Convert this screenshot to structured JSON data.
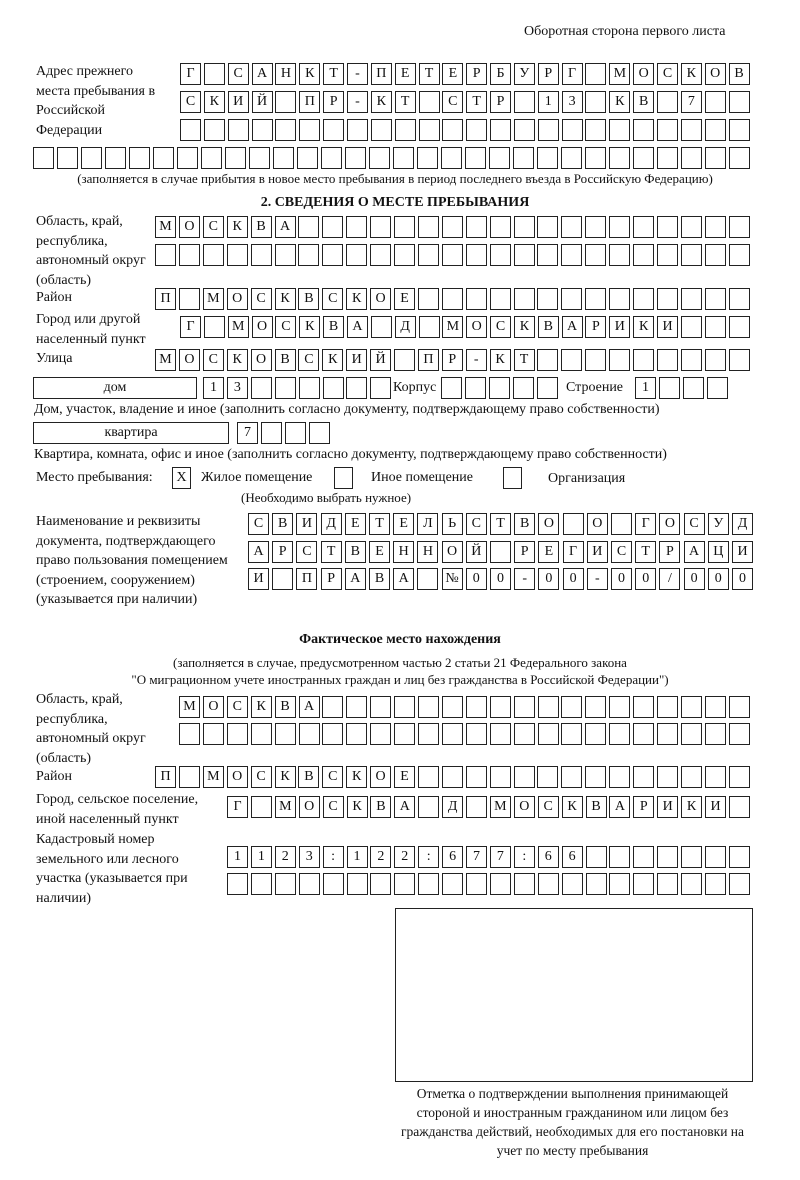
{
  "header": "Оборотная сторона первого листа",
  "prev_address": {
    "label": "Адрес прежнего места пребывания в Российской Федерации",
    "rows": [
      [
        "Г",
        "",
        "С",
        "А",
        "Н",
        "К",
        "Т",
        "-",
        "П",
        "Е",
        "Т",
        "Е",
        "Р",
        "Б",
        "У",
        "Р",
        "Г",
        "",
        "М",
        "О",
        "С",
        "К",
        "О",
        "В"
      ],
      [
        "С",
        "К",
        "И",
        "Й",
        "",
        "П",
        "Р",
        "-",
        "К",
        "Т",
        "",
        "С",
        "Т",
        "Р",
        "",
        "1",
        "3",
        "",
        "К",
        "В",
        "",
        "7",
        "",
        ""
      ],
      [
        "",
        "",
        "",
        "",
        "",
        "",
        "",
        "",
        "",
        "",
        "",
        "",
        "",
        "",
        "",
        "",
        "",
        "",
        "",
        "",
        "",
        "",
        "",
        ""
      ],
      [
        "",
        "",
        "",
        "",
        "",
        "",
        "",
        "",
        "",
        "",
        "",
        "",
        "",
        "",
        "",
        "",
        "",
        "",
        "",
        "",
        "",
        "",
        "",
        "",
        "",
        "",
        "",
        "",
        "",
        ""
      ]
    ],
    "note": "(заполняется в случае прибытия в новое место пребывания в период последнего въезда в Российскую Федерацию)"
  },
  "section2": {
    "title": "2. СВЕДЕНИЯ О МЕСТЕ ПРЕБЫВАНИЯ",
    "region_label": "Область, край, республика, автономный округ (область)",
    "region_rows": [
      [
        "М",
        "О",
        "С",
        "К",
        "В",
        "А",
        "",
        "",
        "",
        "",
        "",
        "",
        "",
        "",
        "",
        "",
        "",
        "",
        "",
        "",
        "",
        "",
        "",
        "",
        ""
      ],
      [
        "",
        "",
        "",
        "",
        "",
        "",
        "",
        "",
        "",
        "",
        "",
        "",
        "",
        "",
        "",
        "",
        "",
        "",
        "",
        "",
        "",
        "",
        "",
        "",
        ""
      ]
    ],
    "district_label": "Район",
    "district": [
      "П",
      "",
      "М",
      "О",
      "С",
      "К",
      "В",
      "С",
      "К",
      "О",
      "Е",
      "",
      "",
      "",
      "",
      "",
      "",
      "",
      "",
      "",
      "",
      "",
      "",
      "",
      ""
    ],
    "city_label": "Город или другой населенный пункт",
    "city": [
      "Г",
      "",
      "М",
      "О",
      "С",
      "К",
      "В",
      "А",
      "",
      "Д",
      "",
      "М",
      "О",
      "С",
      "К",
      "В",
      "А",
      "Р",
      "И",
      "К",
      "И",
      "",
      "",
      ""
    ],
    "street_label": "Улица",
    "street": [
      "М",
      "О",
      "С",
      "К",
      "О",
      "В",
      "С",
      "К",
      "И",
      "Й",
      "",
      "П",
      "Р",
      "-",
      "К",
      "Т",
      "",
      "",
      "",
      "",
      "",
      "",
      "",
      "",
      ""
    ],
    "house_type": "дом",
    "house": [
      "1",
      "3",
      "",
      "",
      "",
      "",
      "",
      ""
    ],
    "korpus_label": "Корпус",
    "korpus": [
      "",
      "",
      "",
      "",
      ""
    ],
    "building_label": "Строение",
    "building": [
      "1",
      "",
      "",
      ""
    ],
    "house_note": "Дом, участок, владение и иное (заполнить согласно документу, подтверждающему право собственности)",
    "flat_type": "квартира",
    "flat": [
      "7",
      "",
      "",
      ""
    ],
    "flat_note": "Квартира, комната, офис и иное (заполнить согласно документу, подтверждающему право собственности)",
    "place_label": "Место пребывания:",
    "place_options": [
      {
        "label": "Жилое помещение",
        "mark": "X"
      },
      {
        "label": "Иное помещение",
        "mark": ""
      },
      {
        "label": "Организация",
        "mark": ""
      }
    ],
    "place_note": "(Необходимо выбрать нужное)",
    "doc_label": "Наименование и реквизиты документа, подтверждающего право пользования помещением (строением, сооружением) (указывается при наличии)",
    "doc_rows": [
      [
        "С",
        "В",
        "И",
        "Д",
        "Е",
        "Т",
        "Е",
        "Л",
        "Ь",
        "С",
        "Т",
        "В",
        "О",
        "",
        "О",
        "",
        "Г",
        "О",
        "С",
        "У",
        "Д"
      ],
      [
        "А",
        "Р",
        "С",
        "Т",
        "В",
        "Е",
        "Н",
        "Н",
        "О",
        "Й",
        "",
        "Р",
        "Е",
        "Г",
        "И",
        "С",
        "Т",
        "Р",
        "А",
        "Ц",
        "И"
      ],
      [
        "И",
        "",
        "П",
        "Р",
        "А",
        "В",
        "А",
        "",
        "№",
        "0",
        "0",
        "-",
        "0",
        "0",
        "-",
        "0",
        "0",
        "/",
        "0",
        "0",
        "0"
      ]
    ]
  },
  "actual": {
    "title": "Фактическое место нахождения",
    "note1": "(заполняется в случае, предусмотренном частью 2 статьи 21 Федерального закона",
    "note2": "\"О миграционном учете иностранных граждан и лиц без гражданства в Российской Федерации\")",
    "region_label": "Область, край, республика, автономный округ (область)",
    "region_rows": [
      [
        "М",
        "О",
        "С",
        "К",
        "В",
        "А",
        "",
        "",
        "",
        "",
        "",
        "",
        "",
        "",
        "",
        "",
        "",
        "",
        "",
        "",
        "",
        "",
        "",
        ""
      ],
      [
        "",
        "",
        "",
        "",
        "",
        "",
        "",
        "",
        "",
        "",
        "",
        "",
        "",
        "",
        "",
        "",
        "",
        "",
        "",
        "",
        "",
        "",
        "",
        ""
      ]
    ],
    "district_label": "Район",
    "district": [
      "П",
      "",
      "М",
      "О",
      "С",
      "К",
      "В",
      "С",
      "К",
      "О",
      "Е",
      "",
      "",
      "",
      "",
      "",
      "",
      "",
      "",
      "",
      "",
      "",
      "",
      "",
      ""
    ],
    "city_label": "Город, сельское поселение, иной населенный пункт",
    "city": [
      "Г",
      "",
      "М",
      "О",
      "С",
      "К",
      "В",
      "А",
      "",
      "Д",
      "",
      "М",
      "О",
      "С",
      "К",
      "В",
      "А",
      "Р",
      "И",
      "К",
      "И",
      ""
    ],
    "cadastral_label": "Кадастровый номер земельного или лесного участка (указывается при наличии)",
    "cadastral_rows": [
      [
        "1",
        "1",
        "2",
        "3",
        ":",
        "1",
        "2",
        "2",
        ":",
        "6",
        "7",
        "7",
        ":",
        "6",
        "6",
        "",
        "",
        "",
        "",
        "",
        "",
        ""
      ],
      [
        "",
        "",
        "",
        "",
        "",
        "",
        "",
        "",
        "",
        "",
        "",
        "",
        "",
        "",
        "",
        "",
        "",
        "",
        "",
        "",
        "",
        ""
      ]
    ]
  },
  "signature_caption": "Отметка о подтверждении выполнения принимающей стороной и иностранным гражданином или лицом без гражданства действий, необходимых для его постановки на учет по месту пребывания"
}
